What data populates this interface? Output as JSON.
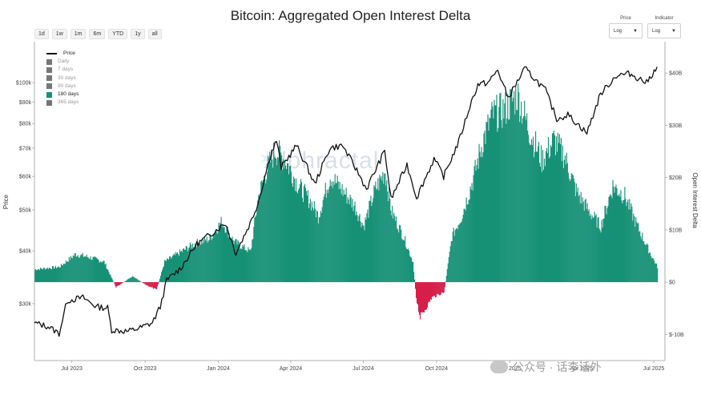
{
  "title": "Bitcoin: Aggregated Open Interest Delta",
  "range_buttons": [
    "1d",
    "1w",
    "1m",
    "6m",
    "YTD",
    "1y",
    "all"
  ],
  "controls": {
    "price": {
      "label": "Price",
      "value": "Log"
    },
    "indicator": {
      "label": "Indicator",
      "value": "Log"
    }
  },
  "legend": {
    "price": "Price",
    "items": [
      "Daily",
      "7 days",
      "30 days",
      "90 days",
      "180 days",
      "365 days"
    ],
    "active": "180 days"
  },
  "watermark": "Alphractal",
  "credit": "公众号 · 话李话外",
  "colors": {
    "positive": "#169176",
    "negative": "#d61f4a",
    "price_line": "#111111"
  },
  "chart_data": {
    "type": "area",
    "title": "Bitcoin: Aggregated Open Interest Delta",
    "ylabel": "Price",
    "y2label": "Open Interest Delta",
    "y_scale": "log",
    "y_ticks": [
      "$30k",
      "$40k",
      "$50k",
      "$60k",
      "$70k",
      "$80k",
      "$90k",
      "$100k"
    ],
    "y2_ticks": [
      "$-10B",
      "$0",
      "$10B",
      "$20B",
      "$30B",
      "$40B"
    ],
    "x_ticks": [
      "Jul 2023",
      "Oct 2023",
      "Jan 2024",
      "Apr 2024",
      "Jul 2024",
      "Oct 2024",
      "Jan 2025",
      "Apr 2025",
      "Jul 2025"
    ],
    "x_range": [
      "2023-05-15",
      "2025-07-15"
    ],
    "y_range": [
      22000,
      125000
    ],
    "y2_range": [
      -15,
      46
    ],
    "series": [
      {
        "name": "Price",
        "points": [
          [
            "2023-05-15",
            27000
          ],
          [
            "2023-06-01",
            26500
          ],
          [
            "2023-06-15",
            25500
          ],
          [
            "2023-06-25",
            30500
          ],
          [
            "2023-07-15",
            31000
          ],
          [
            "2023-08-01",
            29500
          ],
          [
            "2023-08-15",
            29300
          ],
          [
            "2023-08-20",
            26000
          ],
          [
            "2023-09-10",
            25800
          ],
          [
            "2023-09-25",
            26300
          ],
          [
            "2023-10-10",
            27000
          ],
          [
            "2023-10-20",
            29500
          ],
          [
            "2023-10-28",
            34000
          ],
          [
            "2023-11-15",
            36500
          ],
          [
            "2023-12-05",
            41500
          ],
          [
            "2023-12-20",
            43500
          ],
          [
            "2024-01-10",
            46500
          ],
          [
            "2024-01-23",
            39500
          ],
          [
            "2024-02-10",
            46500
          ],
          [
            "2024-02-20",
            52000
          ],
          [
            "2024-03-05",
            66000
          ],
          [
            "2024-03-14",
            73000
          ],
          [
            "2024-03-20",
            63000
          ],
          [
            "2024-04-08",
            71000
          ],
          [
            "2024-04-20",
            64000
          ],
          [
            "2024-05-01",
            57500
          ],
          [
            "2024-05-20",
            70000
          ],
          [
            "2024-06-05",
            71000
          ],
          [
            "2024-06-25",
            61000
          ],
          [
            "2024-07-05",
            56000
          ],
          [
            "2024-07-28",
            69000
          ],
          [
            "2024-08-05",
            53000
          ],
          [
            "2024-08-25",
            64000
          ],
          [
            "2024-09-06",
            53500
          ],
          [
            "2024-09-28",
            66000
          ],
          [
            "2024-10-10",
            60000
          ],
          [
            "2024-10-29",
            72500
          ],
          [
            "2024-11-12",
            88000
          ],
          [
            "2024-11-22",
            99000
          ],
          [
            "2024-12-05",
            100000
          ],
          [
            "2024-12-17",
            107000
          ],
          [
            "2024-12-30",
            92000
          ],
          [
            "2025-01-20",
            108000
          ],
          [
            "2025-02-15",
            96000
          ],
          [
            "2025-03-01",
            82000
          ],
          [
            "2025-03-15",
            84000
          ],
          [
            "2025-04-08",
            76000
          ],
          [
            "2025-04-25",
            94000
          ],
          [
            "2025-05-15",
            104000
          ],
          [
            "2025-06-01",
            105000
          ],
          [
            "2025-06-22",
            100000
          ],
          [
            "2025-07-05",
            109000
          ]
        ]
      },
      {
        "name": "180 days",
        "points": [
          [
            "2023-05-15",
            2.5
          ],
          [
            "2023-06-15",
            3
          ],
          [
            "2023-07-05",
            5.5
          ],
          [
            "2023-07-20",
            5
          ],
          [
            "2023-08-10",
            4
          ],
          [
            "2023-08-25",
            -1
          ],
          [
            "2023-09-15",
            1.2
          ],
          [
            "2023-10-01",
            -0.5
          ],
          [
            "2023-10-15",
            -1.5
          ],
          [
            "2023-10-25",
            4
          ],
          [
            "2023-11-15",
            6
          ],
          [
            "2023-12-01",
            7.5
          ],
          [
            "2023-12-20",
            8.5
          ],
          [
            "2024-01-05",
            12
          ],
          [
            "2024-01-20",
            8
          ],
          [
            "2024-02-10",
            6
          ],
          [
            "2024-02-20",
            17
          ],
          [
            "2024-03-01",
            22
          ],
          [
            "2024-03-12",
            26
          ],
          [
            "2024-03-25",
            24
          ],
          [
            "2024-04-10",
            19
          ],
          [
            "2024-04-25",
            16
          ],
          [
            "2024-05-05",
            13
          ],
          [
            "2024-05-20",
            21
          ],
          [
            "2024-06-05",
            18
          ],
          [
            "2024-06-20",
            15
          ],
          [
            "2024-07-01",
            11
          ],
          [
            "2024-07-15",
            18
          ],
          [
            "2024-07-28",
            22
          ],
          [
            "2024-08-05",
            14
          ],
          [
            "2024-08-20",
            9
          ],
          [
            "2024-09-01",
            4
          ],
          [
            "2024-09-05",
            -3
          ],
          [
            "2024-09-10",
            -7
          ],
          [
            "2024-09-25",
            -3
          ],
          [
            "2024-10-10",
            -2
          ],
          [
            "2024-10-20",
            9
          ],
          [
            "2024-11-01",
            13
          ],
          [
            "2024-11-15",
            20
          ],
          [
            "2024-11-28",
            28
          ],
          [
            "2024-12-10",
            33
          ],
          [
            "2024-12-25",
            34
          ],
          [
            "2025-01-10",
            37
          ],
          [
            "2025-01-25",
            30
          ],
          [
            "2025-02-10",
            24
          ],
          [
            "2025-02-25",
            28
          ],
          [
            "2025-03-10",
            25
          ],
          [
            "2025-03-25",
            18
          ],
          [
            "2025-04-10",
            14
          ],
          [
            "2025-04-25",
            11
          ],
          [
            "2025-05-10",
            19
          ],
          [
            "2025-05-25",
            17
          ],
          [
            "2025-06-10",
            11
          ],
          [
            "2025-06-25",
            6
          ],
          [
            "2025-07-05",
            3
          ]
        ]
      }
    ]
  }
}
